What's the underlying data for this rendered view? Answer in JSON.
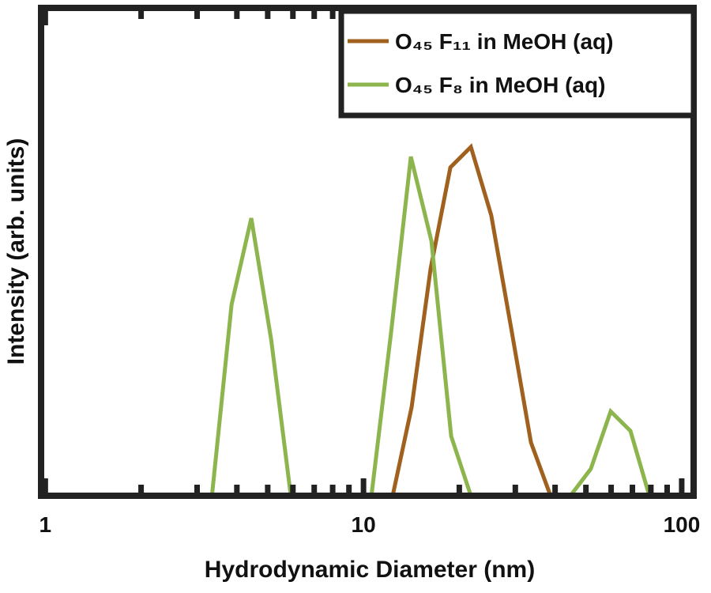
{
  "chart_data": {
    "type": "line",
    "xlabel": "Hydrodynamic Diameter (nm)",
    "ylabel": "Intensity (arb. units)",
    "xscale": "log",
    "xlim": [
      0.97,
      109
    ],
    "ylim": [
      0,
      1
    ],
    "xticks": [
      1,
      10,
      100
    ],
    "minor_xticks": [
      2,
      3,
      4,
      5,
      6,
      7,
      8,
      9,
      20,
      30,
      40,
      50,
      60,
      70,
      80,
      90
    ],
    "legend": "upper right",
    "series": [
      {
        "name": "O₄₅ F₁₁ in MeOH (aq)",
        "color": "#a0601e",
        "x": [
          12.35,
          14.17,
          16.25,
          18.75,
          21.75,
          25.2,
          29.1,
          33.6,
          38.7
        ],
        "values": [
          0,
          0.182,
          0.465,
          0.673,
          0.715,
          0.575,
          0.344,
          0.109,
          0
        ]
      },
      {
        "name": "O₄₅ F₈ in MeOH (aq)",
        "color": "#8db54e",
        "x": [
          3.34,
          3.85,
          4.44,
          5.13,
          5.91,
          10.59,
          12.21,
          14.09,
          16.35,
          18.86,
          21.75,
          44.7,
          51.8,
          59.8,
          69.0,
          79.1
        ],
        "values": [
          0,
          0.392,
          0.569,
          0.319,
          0,
          0,
          0.335,
          0.695,
          0.522,
          0.122,
          0,
          0,
          0.055,
          0.173,
          0.133,
          0
        ]
      }
    ]
  }
}
